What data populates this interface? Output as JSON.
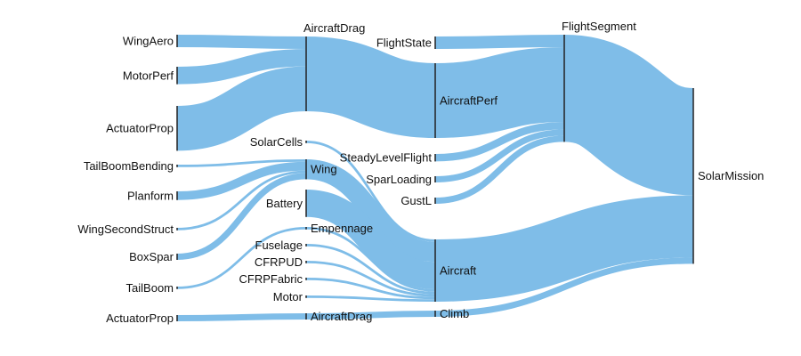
{
  "diagram": {
    "type": "sankey",
    "link_color": "#7fbde8",
    "node_color": "#222222",
    "nodes": [
      {
        "id": "wingaero",
        "label": "WingAero"
      },
      {
        "id": "motorperf",
        "label": "MotorPerf"
      },
      {
        "id": "actuatorprop1",
        "label": "ActuatorProp"
      },
      {
        "id": "tailboombending",
        "label": "TailBoomBending"
      },
      {
        "id": "planform",
        "label": "Planform"
      },
      {
        "id": "wingsecondstruct",
        "label": "WingSecondStruct"
      },
      {
        "id": "boxspar",
        "label": "BoxSpar"
      },
      {
        "id": "tailboom",
        "label": "TailBoom"
      },
      {
        "id": "actuatorprop2",
        "label": "ActuatorProp"
      },
      {
        "id": "aircraftdrag1",
        "label": "AircraftDrag"
      },
      {
        "id": "solarcells",
        "label": "SolarCells"
      },
      {
        "id": "wing",
        "label": "Wing"
      },
      {
        "id": "battery",
        "label": "Battery"
      },
      {
        "id": "empennage",
        "label": "Empennage"
      },
      {
        "id": "fuselage",
        "label": "Fuselage"
      },
      {
        "id": "cfrpud",
        "label": "CFRPUD"
      },
      {
        "id": "cfrpfabric",
        "label": "CFRPFabric"
      },
      {
        "id": "motor",
        "label": "Motor"
      },
      {
        "id": "aircraftdrag2",
        "label": "AircraftDrag"
      },
      {
        "id": "flightstate",
        "label": "FlightState"
      },
      {
        "id": "aircraftperf",
        "label": "AircraftPerf"
      },
      {
        "id": "steadylevelflight",
        "label": "SteadyLevelFlight"
      },
      {
        "id": "sparloading",
        "label": "SparLoading"
      },
      {
        "id": "gustl",
        "label": "GustL"
      },
      {
        "id": "aircraft",
        "label": "Aircraft"
      },
      {
        "id": "climb",
        "label": "Climb"
      },
      {
        "id": "flightsegment",
        "label": "FlightSegment"
      },
      {
        "id": "solarmission",
        "label": "SolarMission"
      }
    ],
    "links": [
      {
        "source": "wingaero",
        "target": "aircraftdrag1",
        "value": 10
      },
      {
        "source": "motorperf",
        "target": "aircraftdrag1",
        "value": 14
      },
      {
        "source": "actuatorprop1",
        "target": "aircraftdrag1",
        "value": 36
      },
      {
        "source": "aircraftdrag1",
        "target": "aircraftperf",
        "value": 60
      },
      {
        "source": "solarcells",
        "target": "aircraft",
        "value": 2
      },
      {
        "source": "tailboombending",
        "target": "wing",
        "value": 2
      },
      {
        "source": "planform",
        "target": "wing",
        "value": 7
      },
      {
        "source": "wingsecondstruct",
        "target": "wing",
        "value": 2
      },
      {
        "source": "boxspar",
        "target": "wing",
        "value": 5
      },
      {
        "source": "tailboom",
        "target": "empennage",
        "value": 2
      },
      {
        "source": "actuatorprop2",
        "target": "aircraftdrag2",
        "value": 5
      },
      {
        "source": "wing",
        "target": "aircraft",
        "value": 16
      },
      {
        "source": "battery",
        "target": "aircraft",
        "value": 22
      },
      {
        "source": "empennage",
        "target": "aircraft",
        "value": 2
      },
      {
        "source": "fuselage",
        "target": "aircraft",
        "value": 2
      },
      {
        "source": "cfrpud",
        "target": "aircraft",
        "value": 2
      },
      {
        "source": "cfrpfabric",
        "target": "aircraft",
        "value": 2
      },
      {
        "source": "motor",
        "target": "aircraft",
        "value": 2
      },
      {
        "source": "aircraftdrag2",
        "target": "climb",
        "value": 5
      },
      {
        "source": "flightstate",
        "target": "flightsegment",
        "value": 10
      },
      {
        "source": "aircraftperf",
        "target": "flightsegment",
        "value": 60
      },
      {
        "source": "steadylevelflight",
        "target": "flightsegment",
        "value": 6
      },
      {
        "source": "sparloading",
        "target": "flightsegment",
        "value": 5
      },
      {
        "source": "gustl",
        "target": "flightsegment",
        "value": 5
      },
      {
        "source": "flightsegment",
        "target": "solarmission",
        "value": 86
      },
      {
        "source": "aircraft",
        "target": "solarmission",
        "value": 50
      },
      {
        "source": "climb",
        "target": "solarmission",
        "value": 5
      }
    ]
  }
}
